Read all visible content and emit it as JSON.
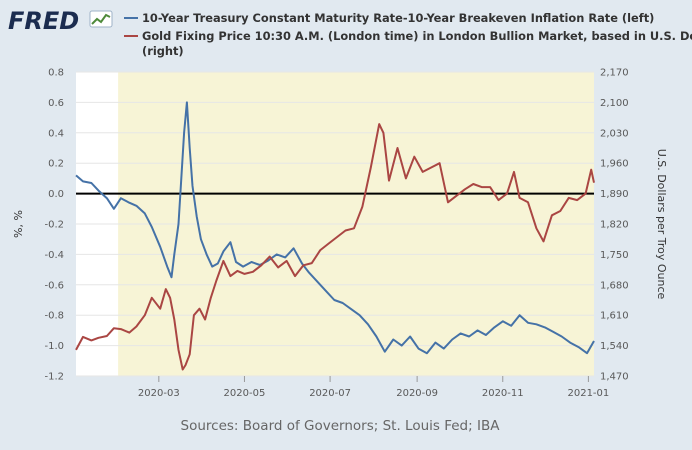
{
  "brand": {
    "name": "FRED",
    "logo_icon": "fred-chart-logo-icon"
  },
  "colors": {
    "series_left": "#4572a7",
    "series_right": "#aa4643",
    "recession_shade": "#f7f4d6",
    "background": "#e1e9f0",
    "zero_line": "#000000"
  },
  "legend": [
    {
      "lines": [
        "10-Year Treasury Constant Maturity Rate-10-Year Breakeven Inflation Rate (left)"
      ]
    },
    {
      "lines": [
        "Gold Fixing Price 10:30 A.M. (London time) in London Bullion Market, based in U.S. Dollars",
        "(right)"
      ]
    }
  ],
  "axes": {
    "left_title": "%, %",
    "right_title": "U.S. Dollars per Troy Ounce",
    "left_ticks": [
      "0.8",
      "0.6",
      "0.4",
      "0.2",
      "0.0",
      "-0.2",
      "-0.4",
      "-0.6",
      "-0.8",
      "-1.0",
      "-1.2"
    ],
    "right_ticks": [
      "2,170",
      "2,100",
      "2,030",
      "1,960",
      "1,890",
      "1,820",
      "1,750",
      "1,680",
      "1,610",
      "1,540",
      "1,470"
    ],
    "x_ticks": [
      "2020-03",
      "2020-05",
      "2020-07",
      "2020-09",
      "2020-11",
      "2021-01"
    ]
  },
  "source": "Sources: Board of Governors; St. Louis Fed; IBA",
  "chart_data": {
    "type": "line",
    "x_range": [
      "2020-01-02",
      "2021-01-05"
    ],
    "left_axis": {
      "label": "%, %",
      "ylim": [
        -1.2,
        0.8
      ]
    },
    "right_axis": {
      "label": "U.S. Dollars per Troy Ounce",
      "ylim": [
        1470,
        2170
      ]
    },
    "shaded_period": {
      "start": "2020-02-01",
      "end": "2021-01-05"
    },
    "horizontal_line": 0.0,
    "series": [
      {
        "name": "10-Year Treasury Constant Maturity Rate-10-Year Breakeven Inflation Rate (left)",
        "axis": "left",
        "points": [
          [
            "2020-01-02",
            0.12
          ],
          [
            "2020-01-07",
            0.08
          ],
          [
            "2020-01-13",
            0.07
          ],
          [
            "2020-01-18",
            0.02
          ],
          [
            "2020-01-24",
            -0.03
          ],
          [
            "2020-01-29",
            -0.1
          ],
          [
            "2020-02-03",
            -0.03
          ],
          [
            "2020-02-09",
            -0.06
          ],
          [
            "2020-02-14",
            -0.08
          ],
          [
            "2020-02-20",
            -0.13
          ],
          [
            "2020-02-25",
            -0.22
          ],
          [
            "2020-03-02",
            -0.35
          ],
          [
            "2020-03-07",
            -0.48
          ],
          [
            "2020-03-10",
            -0.55
          ],
          [
            "2020-03-12",
            -0.4
          ],
          [
            "2020-03-15",
            -0.2
          ],
          [
            "2020-03-17",
            0.1
          ],
          [
            "2020-03-19",
            0.4
          ],
          [
            "2020-03-21",
            0.6
          ],
          [
            "2020-03-23",
            0.3
          ],
          [
            "2020-03-25",
            0.05
          ],
          [
            "2020-03-28",
            -0.15
          ],
          [
            "2020-03-31",
            -0.3
          ],
          [
            "2020-04-04",
            -0.4
          ],
          [
            "2020-04-08",
            -0.48
          ],
          [
            "2020-04-12",
            -0.46
          ],
          [
            "2020-04-16",
            -0.38
          ],
          [
            "2020-04-21",
            -0.32
          ],
          [
            "2020-04-25",
            -0.45
          ],
          [
            "2020-04-30",
            -0.48
          ],
          [
            "2020-05-06",
            -0.45
          ],
          [
            "2020-05-12",
            -0.47
          ],
          [
            "2020-05-18",
            -0.44
          ],
          [
            "2020-05-24",
            -0.4
          ],
          [
            "2020-05-30",
            -0.42
          ],
          [
            "2020-06-05",
            -0.36
          ],
          [
            "2020-06-11",
            -0.46
          ],
          [
            "2020-06-16",
            -0.52
          ],
          [
            "2020-06-22",
            -0.58
          ],
          [
            "2020-06-28",
            -0.64
          ],
          [
            "2020-07-04",
            -0.7
          ],
          [
            "2020-07-10",
            -0.72
          ],
          [
            "2020-07-16",
            -0.76
          ],
          [
            "2020-07-22",
            -0.8
          ],
          [
            "2020-07-28",
            -0.86
          ],
          [
            "2020-08-03",
            -0.94
          ],
          [
            "2020-08-09",
            -1.04
          ],
          [
            "2020-08-15",
            -0.96
          ],
          [
            "2020-08-21",
            -1.0
          ],
          [
            "2020-08-27",
            -0.94
          ],
          [
            "2020-09-02",
            -1.02
          ],
          [
            "2020-09-08",
            -1.05
          ],
          [
            "2020-09-14",
            -0.98
          ],
          [
            "2020-09-20",
            -1.02
          ],
          [
            "2020-09-26",
            -0.96
          ],
          [
            "2020-10-02",
            -0.92
          ],
          [
            "2020-10-08",
            -0.94
          ],
          [
            "2020-10-14",
            -0.9
          ],
          [
            "2020-10-20",
            -0.93
          ],
          [
            "2020-10-26",
            -0.88
          ],
          [
            "2020-11-01",
            -0.84
          ],
          [
            "2020-11-07",
            -0.87
          ],
          [
            "2020-11-13",
            -0.8
          ],
          [
            "2020-11-19",
            -0.85
          ],
          [
            "2020-11-25",
            -0.86
          ],
          [
            "2020-12-01",
            -0.88
          ],
          [
            "2020-12-07",
            -0.91
          ],
          [
            "2020-12-13",
            -0.94
          ],
          [
            "2020-12-19",
            -0.98
          ],
          [
            "2020-12-25",
            -1.01
          ],
          [
            "2020-12-31",
            -1.05
          ],
          [
            "2021-01-05",
            -0.97
          ]
        ]
      },
      {
        "name": "Gold Fixing Price 10:30 A.M. (London time) in London Bullion Market, based in U.S. Dollars (right)",
        "axis": "right",
        "points": [
          [
            "2020-01-02",
            1530
          ],
          [
            "2020-01-07",
            1560
          ],
          [
            "2020-01-13",
            1552
          ],
          [
            "2020-01-18",
            1558
          ],
          [
            "2020-01-24",
            1562
          ],
          [
            "2020-01-29",
            1580
          ],
          [
            "2020-02-03",
            1578
          ],
          [
            "2020-02-09",
            1570
          ],
          [
            "2020-02-14",
            1584
          ],
          [
            "2020-02-20",
            1610
          ],
          [
            "2020-02-25",
            1650
          ],
          [
            "2020-03-02",
            1625
          ],
          [
            "2020-03-06",
            1670
          ],
          [
            "2020-03-09",
            1650
          ],
          [
            "2020-03-12",
            1600
          ],
          [
            "2020-03-15",
            1530
          ],
          [
            "2020-03-18",
            1485
          ],
          [
            "2020-03-20",
            1495
          ],
          [
            "2020-03-23",
            1520
          ],
          [
            "2020-03-26",
            1610
          ],
          [
            "2020-03-30",
            1625
          ],
          [
            "2020-04-03",
            1600
          ],
          [
            "2020-04-07",
            1650
          ],
          [
            "2020-04-11",
            1690
          ],
          [
            "2020-04-16",
            1735
          ],
          [
            "2020-04-21",
            1700
          ],
          [
            "2020-04-26",
            1712
          ],
          [
            "2020-05-01",
            1705
          ],
          [
            "2020-05-07",
            1710
          ],
          [
            "2020-05-13",
            1725
          ],
          [
            "2020-05-19",
            1745
          ],
          [
            "2020-05-25",
            1720
          ],
          [
            "2020-05-31",
            1735
          ],
          [
            "2020-06-06",
            1700
          ],
          [
            "2020-06-12",
            1725
          ],
          [
            "2020-06-18",
            1730
          ],
          [
            "2020-06-24",
            1760
          ],
          [
            "2020-06-30",
            1775
          ],
          [
            "2020-07-06",
            1790
          ],
          [
            "2020-07-12",
            1805
          ],
          [
            "2020-07-18",
            1810
          ],
          [
            "2020-07-24",
            1860
          ],
          [
            "2020-07-30",
            1950
          ],
          [
            "2020-08-05",
            2050
          ],
          [
            "2020-08-08",
            2030
          ],
          [
            "2020-08-12",
            1920
          ],
          [
            "2020-08-18",
            1995
          ],
          [
            "2020-08-24",
            1925
          ],
          [
            "2020-08-30",
            1975
          ],
          [
            "2020-09-05",
            1940
          ],
          [
            "2020-09-11",
            1950
          ],
          [
            "2020-09-17",
            1960
          ],
          [
            "2020-09-23",
            1870
          ],
          [
            "2020-09-29",
            1885
          ],
          [
            "2020-10-05",
            1900
          ],
          [
            "2020-10-11",
            1912
          ],
          [
            "2020-10-17",
            1905
          ],
          [
            "2020-10-23",
            1905
          ],
          [
            "2020-10-29",
            1875
          ],
          [
            "2020-11-04",
            1890
          ],
          [
            "2020-11-09",
            1940
          ],
          [
            "2020-11-13",
            1880
          ],
          [
            "2020-11-19",
            1870
          ],
          [
            "2020-11-25",
            1810
          ],
          [
            "2020-11-30",
            1780
          ],
          [
            "2020-12-06",
            1840
          ],
          [
            "2020-12-12",
            1850
          ],
          [
            "2020-12-18",
            1880
          ],
          [
            "2020-12-24",
            1875
          ],
          [
            "2020-12-30",
            1890
          ],
          [
            "2021-01-03",
            1945
          ],
          [
            "2021-01-05",
            1915
          ]
        ]
      }
    ]
  }
}
